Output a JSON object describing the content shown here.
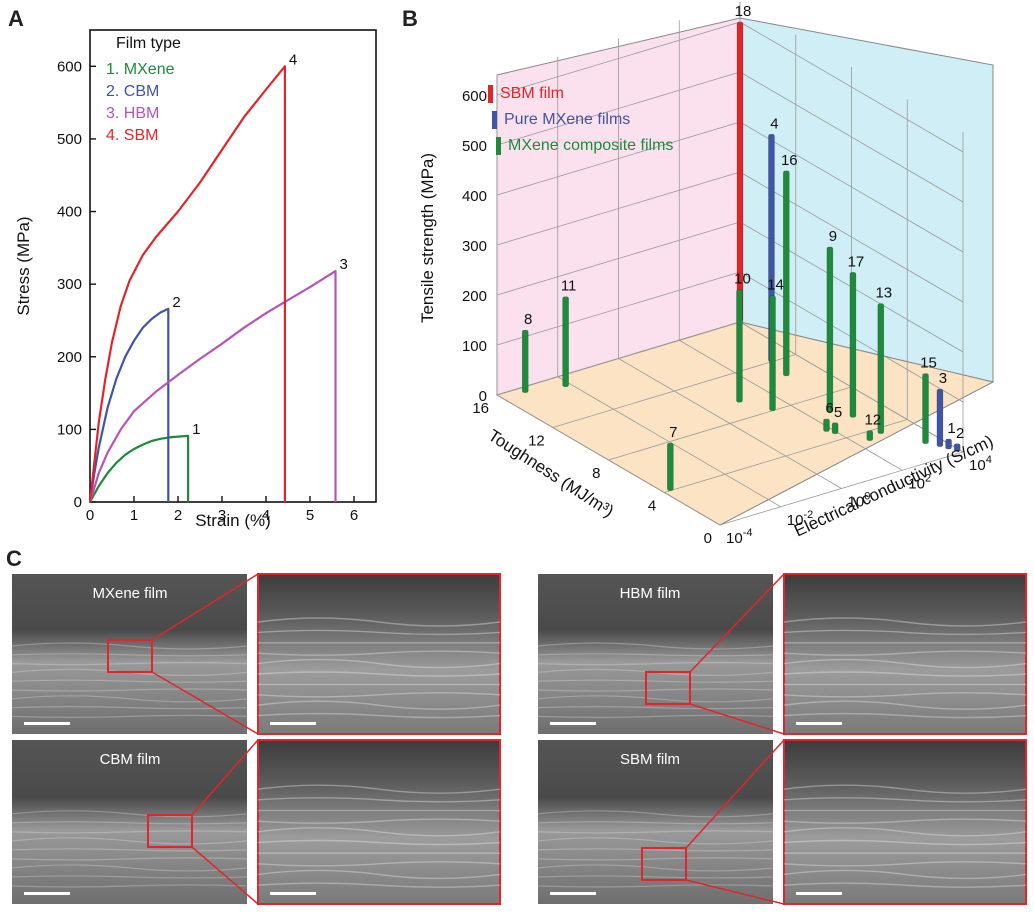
{
  "panel_a": {
    "letter": "A",
    "chart_data": {
      "type": "line",
      "xlabel": "Strain (%)",
      "ylabel": "Stress (MPa)",
      "xlim": [
        0,
        6.5
      ],
      "ylim": [
        0,
        650
      ],
      "xticks": [
        0,
        1,
        2,
        3,
        4,
        5,
        6
      ],
      "yticks": [
        0,
        100,
        200,
        300,
        400,
        500,
        600
      ],
      "legend_title": "Film type",
      "legend_position": "top-left",
      "series": [
        {
          "name": "1. MXene",
          "end_label": "1",
          "color": "#1e8a3c",
          "points": [
            [
              0,
              0
            ],
            [
              0.2,
              22
            ],
            [
              0.4,
              40
            ],
            [
              0.6,
              54
            ],
            [
              0.8,
              65
            ],
            [
              1.0,
              73
            ],
            [
              1.2,
              79
            ],
            [
              1.4,
              84
            ],
            [
              1.6,
              87
            ],
            [
              1.8,
              89
            ],
            [
              2.0,
              90
            ],
            [
              2.23,
              91
            ],
            [
              2.23,
              0
            ]
          ]
        },
        {
          "name": "2. CBM",
          "end_label": "2",
          "color": "#3f55a5",
          "points": [
            [
              0,
              0
            ],
            [
              0.1,
              40
            ],
            [
              0.2,
              75
            ],
            [
              0.4,
              130
            ],
            [
              0.6,
              170
            ],
            [
              0.8,
              200
            ],
            [
              1.0,
              222
            ],
            [
              1.2,
              240
            ],
            [
              1.4,
              252
            ],
            [
              1.6,
              261
            ],
            [
              1.78,
              266
            ],
            [
              1.78,
              0
            ]
          ]
        },
        {
          "name": "3. HBM",
          "end_label": "3",
          "color": "#b556b4",
          "points": [
            [
              0,
              0
            ],
            [
              0.2,
              40
            ],
            [
              0.4,
              68
            ],
            [
              0.7,
              100
            ],
            [
              1.0,
              125
            ],
            [
              1.5,
              152
            ],
            [
              2.0,
              175
            ],
            [
              2.5,
              197
            ],
            [
              3.0,
              218
            ],
            [
              3.5,
              240
            ],
            [
              4.0,
              260
            ],
            [
              4.5,
              278
            ],
            [
              5.0,
              296
            ],
            [
              5.58,
              318
            ],
            [
              5.58,
              0
            ]
          ]
        },
        {
          "name": "4. SBM",
          "end_label": "4",
          "color": "#e0262a",
          "points": [
            [
              0,
              0
            ],
            [
              0.1,
              55
            ],
            [
              0.2,
              110
            ],
            [
              0.35,
              170
            ],
            [
              0.5,
              220
            ],
            [
              0.7,
              270
            ],
            [
              0.9,
              305
            ],
            [
              1.2,
              340
            ],
            [
              1.5,
              365
            ],
            [
              2.0,
              400
            ],
            [
              2.5,
              440
            ],
            [
              3.0,
              485
            ],
            [
              3.5,
              530
            ],
            [
              4.0,
              568
            ],
            [
              4.43,
              600
            ],
            [
              4.43,
              0
            ]
          ]
        }
      ]
    }
  },
  "panel_b": {
    "letter": "B",
    "chart_data": {
      "type": "bar3d",
      "xlabel": "Toughness (MJ/m³)",
      "ylabel": "Electrical conductivity (S/cm)",
      "zlabel": "Tensile strength (MPa)",
      "toughness_ticks": [
        0,
        4,
        8,
        12,
        16
      ],
      "conductivity_ticks_exp": [
        "-4",
        "-2",
        "0",
        "2",
        "4"
      ],
      "conductivity_ticks_base": "10",
      "strength_ticks": [
        0,
        100,
        200,
        300,
        400,
        500,
        600
      ],
      "legend_position": "top-left",
      "legend": [
        {
          "label": "SBM film",
          "color": "#e0262a"
        },
        {
          "label": "Pure MXene films",
          "color": "#3f55a5"
        },
        {
          "label": "MXene composite films",
          "color": "#1e8a3c"
        }
      ],
      "bars": [
        {
          "id": "18",
          "group": "SBM film",
          "toughness": 16.0,
          "log_conductivity": 4.0,
          "strength": 600
        },
        {
          "id": "4",
          "group": "Pure MXene films",
          "toughness": 12.0,
          "log_conductivity": 3.2,
          "strength": 455
        },
        {
          "id": "3",
          "group": "Pure MXene films",
          "toughness": 1.0,
          "log_conductivity": 3.7,
          "strength": 115
        },
        {
          "id": "1",
          "group": "Pure MXene films",
          "toughness": 0.6,
          "log_conductivity": 3.8,
          "strength": 20
        },
        {
          "id": "2",
          "group": "Pure MXene films",
          "toughness": 0.2,
          "log_conductivity": 3.9,
          "strength": 15
        },
        {
          "id": "16",
          "group": "MXene composite films",
          "toughness": 10.5,
          "log_conductivity": 3.0,
          "strength": 410
        },
        {
          "id": "9",
          "group": "MXene composite films",
          "toughness": 6.5,
          "log_conductivity": 2.6,
          "strength": 330
        },
        {
          "id": "17",
          "group": "MXene composite films",
          "toughness": 5.5,
          "log_conductivity": 2.9,
          "strength": 290
        },
        {
          "id": "13",
          "group": "MXene composite films",
          "toughness": 3.5,
          "log_conductivity": 2.9,
          "strength": 260
        },
        {
          "id": "15",
          "group": "MXene composite films",
          "toughness": 1.6,
          "log_conductivity": 3.5,
          "strength": 140
        },
        {
          "id": "10",
          "group": "MXene composite films",
          "toughness": 9.5,
          "log_conductivity": 1.0,
          "strength": 225
        },
        {
          "id": "14",
          "group": "MXene composite films",
          "toughness": 8.0,
          "log_conductivity": 1.4,
          "strength": 230
        },
        {
          "id": "11",
          "group": "MXene composite films",
          "toughness": 15.0,
          "log_conductivity": -2.2,
          "strength": 180
        },
        {
          "id": "8",
          "group": "MXene composite films",
          "toughness": 15.5,
          "log_conductivity": -3.3,
          "strength": 125
        },
        {
          "id": "6",
          "group": "MXene composite films",
          "toughness": 5.0,
          "log_conductivity": 1.8,
          "strength": 25
        },
        {
          "id": "5",
          "group": "MXene composite films",
          "toughness": 4.6,
          "log_conductivity": 1.9,
          "strength": 22
        },
        {
          "id": "12",
          "group": "MXene composite films",
          "toughness": 3.2,
          "log_conductivity": 2.4,
          "strength": 20
        },
        {
          "id": "7",
          "group": "MXene composite films",
          "toughness": 4.0,
          "log_conductivity": -3.8,
          "strength": 95
        }
      ]
    }
  },
  "panel_c": {
    "letter": "C",
    "micrographs": [
      {
        "label": "MXene film"
      },
      {
        "label": "CBM film"
      },
      {
        "label": "HBM film"
      },
      {
        "label": "SBM film"
      }
    ]
  }
}
